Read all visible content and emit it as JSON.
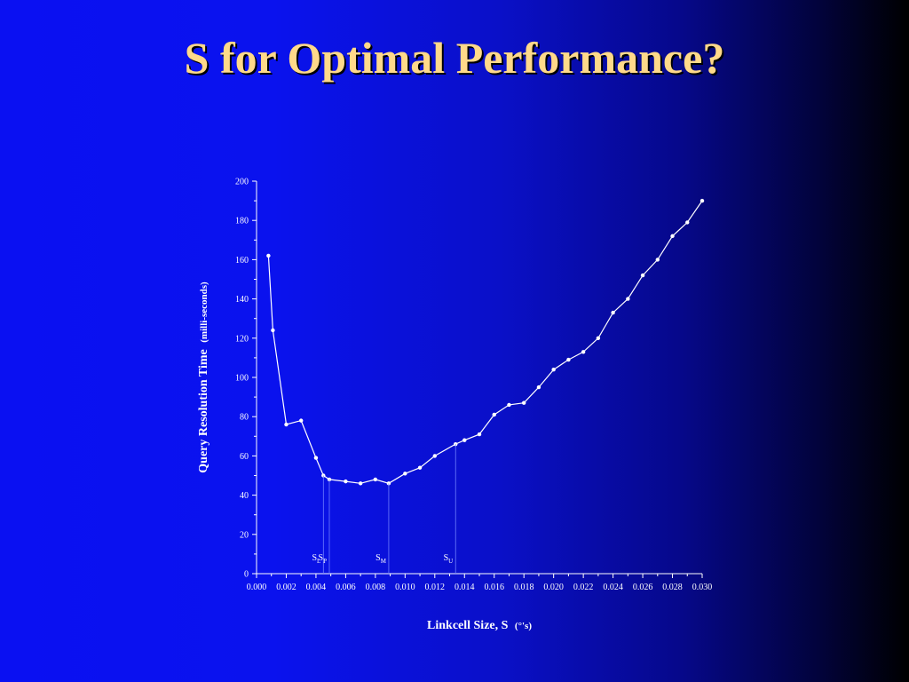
{
  "slide": {
    "title": "S for Optimal Performance?"
  },
  "chart_data": {
    "type": "line",
    "title": "",
    "xlabel": "Linkcell Size, S",
    "xlabel_unit": "(°'s)",
    "ylabel": "Query Resolution  Time",
    "ylabel_unit": "(milli-seconds)",
    "xlim": [
      0.0,
      0.03
    ],
    "ylim": [
      0,
      200
    ],
    "x_ticks": [
      "0.000",
      "0.002",
      "0.004",
      "0.006",
      "0.008",
      "0.010",
      "0.012",
      "0.014",
      "0.016",
      "0.018",
      "0.020",
      "0.022",
      "0.024",
      "0.026",
      "0.028",
      "0.030"
    ],
    "y_ticks": [
      "0",
      "20",
      "40",
      "60",
      "80",
      "100",
      "120",
      "140",
      "160",
      "180",
      "200"
    ],
    "grid": false,
    "line_color": "#ffffff",
    "series": [
      {
        "x": [
          0.0008,
          0.0011,
          0.002,
          0.003,
          0.004,
          0.0045,
          0.0049,
          0.006,
          0.007,
          0.008,
          0.0089,
          0.01,
          0.011,
          0.012,
          0.0134,
          0.014,
          0.015,
          0.016,
          0.017,
          0.018,
          0.019,
          0.02,
          0.021,
          0.022,
          0.023,
          0.024,
          0.025,
          0.026,
          0.027,
          0.028,
          0.029,
          0.03
        ],
        "y": [
          162,
          124,
          76,
          78,
          59,
          50,
          48,
          47,
          46,
          48,
          46,
          51,
          54,
          60,
          66,
          68,
          71,
          81,
          86,
          87,
          95,
          104,
          109,
          113,
          120,
          133,
          140,
          152,
          160,
          172,
          179,
          190
        ]
      }
    ],
    "annotations": [
      {
        "label": "S",
        "sub": "L",
        "x": 0.0045,
        "y": 50
      },
      {
        "label": "S",
        "sub": "P",
        "x": 0.0049,
        "y": 48
      },
      {
        "label": "S",
        "sub": "M",
        "x": 0.0089,
        "y": 46
      },
      {
        "label": "S",
        "sub": "U",
        "x": 0.0134,
        "y": 66
      }
    ]
  }
}
